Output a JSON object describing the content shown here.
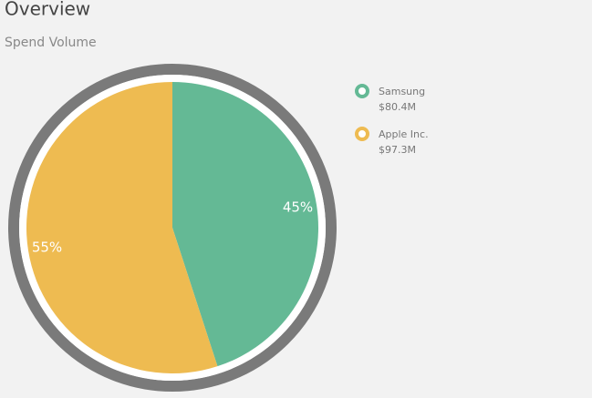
{
  "header": {
    "title": "Overview"
  },
  "chart_data": {
    "type": "pie",
    "title": "Spend Volume",
    "categories": [
      "Samsung",
      "Apple Inc."
    ],
    "values": [
      45,
      55
    ],
    "value_labels": [
      "45%",
      "55%"
    ],
    "colors": [
      "#64b995",
      "#eebb51"
    ],
    "amounts": [
      {
        "value": 80400000,
        "label": "$80.4M"
      },
      {
        "value": 97300000,
        "label": "$97.3M"
      }
    ]
  }
}
